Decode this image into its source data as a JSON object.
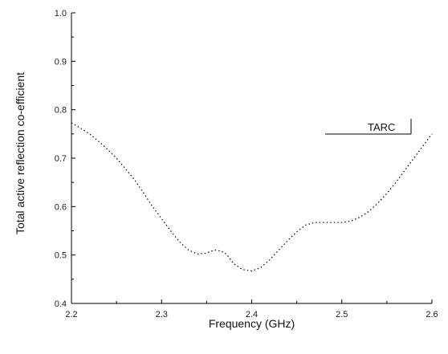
{
  "chart_data": {
    "type": "line",
    "xlabel": "Frequency (GHz)",
    "ylabel": "Total active reflection co-efficient",
    "xlim": [
      2.2,
      2.6
    ],
    "ylim": [
      0.4,
      1.0
    ],
    "x_ticks": [
      "2.2",
      "2.3",
      "2.4",
      "2.5",
      "2.6"
    ],
    "y_ticks": [
      "0.4",
      "0.5",
      "0.6",
      "0.7",
      "0.8",
      "0.9",
      "1.0"
    ],
    "grid": false,
    "legend_position": "right",
    "series": [
      {
        "name": "TARC",
        "line_style": "dotted",
        "color": "#000000",
        "x": [
          2.2,
          2.21,
          2.22,
          2.23,
          2.24,
          2.25,
          2.26,
          2.27,
          2.28,
          2.29,
          2.3,
          2.31,
          2.32,
          2.33,
          2.34,
          2.35,
          2.355,
          2.36,
          2.365,
          2.37,
          2.375,
          2.38,
          2.39,
          2.4,
          2.41,
          2.42,
          2.43,
          2.44,
          2.45,
          2.46,
          2.47,
          2.48,
          2.49,
          2.5,
          2.51,
          2.52,
          2.53,
          2.54,
          2.55,
          2.56,
          2.57,
          2.58,
          2.59,
          2.6
        ],
        "y": [
          0.773,
          0.762,
          0.75,
          0.735,
          0.718,
          0.7,
          0.678,
          0.655,
          0.628,
          0.6,
          0.575,
          0.55,
          0.527,
          0.51,
          0.502,
          0.504,
          0.508,
          0.51,
          0.508,
          0.505,
          0.495,
          0.482,
          0.47,
          0.467,
          0.474,
          0.49,
          0.51,
          0.53,
          0.548,
          0.562,
          0.567,
          0.567,
          0.567,
          0.567,
          0.57,
          0.578,
          0.59,
          0.607,
          0.627,
          0.65,
          0.675,
          0.7,
          0.725,
          0.75
        ]
      }
    ]
  }
}
